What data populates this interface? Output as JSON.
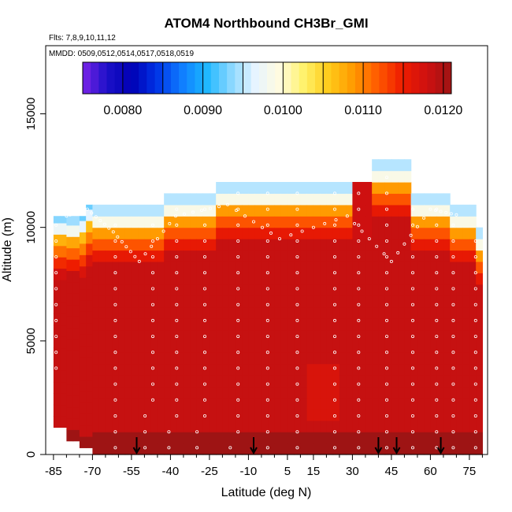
{
  "chart_data": {
    "type": "heatmap",
    "title": "ATOM4 Northbound CH3Br_GMI",
    "subtitle_flights": "Flts: 7,8,9,10,11,12",
    "subtitle_dates": "MMDD: 0509,0512,0514,0517,0518,0519",
    "xlabel": "Latitude (deg N)",
    "ylabel": "Altitude (m)",
    "xlim": [
      -88,
      82
    ],
    "ylim": [
      0,
      18000
    ],
    "x_ticks": [
      -85,
      -70,
      -55,
      -40,
      -25,
      -10,
      5,
      15,
      30,
      45,
      60,
      75
    ],
    "x_tick_labels": [
      "-85",
      "-70",
      "-55",
      "-40",
      "-25",
      "-10",
      "5",
      "15",
      "30",
      "45",
      "60",
      "75"
    ],
    "y_ticks": [
      0,
      5000,
      10000,
      15000
    ],
    "y_tick_labels": [
      "0",
      "5000",
      "10000",
      "15000"
    ],
    "colorbar": {
      "range": [
        0.0075,
        0.0121
      ],
      "ticks": [
        0.008,
        0.009,
        0.01,
        0.011,
        0.012
      ],
      "tick_labels": [
        "0.0080",
        "0.0090",
        "0.0100",
        "0.0110",
        "0.0120"
      ],
      "colors": [
        "#7a24e8",
        "#1c10c8",
        "#0000b4",
        "#0032e6",
        "#0f7bff",
        "#1ab5ff",
        "#86d6ff",
        "#e6f4ff",
        "#fffbe0",
        "#fff26a",
        "#ffcb1a",
        "#ff9a00",
        "#ff5a00",
        "#ee1c00",
        "#cf1010",
        "#9e1414"
      ]
    },
    "surface_profile": [
      {
        "lat": -85,
        "top": 10500
      },
      {
        "lat": -80,
        "top": 10500
      },
      {
        "lat": -75,
        "top": 11000
      },
      {
        "lat": -60,
        "top": 11000
      },
      {
        "lat": -45,
        "top": 11500
      },
      {
        "lat": -25,
        "top": 12000
      },
      {
        "lat": 20,
        "top": 12000
      },
      {
        "lat": 35,
        "top": 13000
      },
      {
        "lat": 50,
        "top": 11500
      },
      {
        "lat": 65,
        "top": 11000
      },
      {
        "lat": 75,
        "top": 10000
      },
      {
        "lat": 80,
        "top": 9500
      }
    ],
    "flight_paths": [
      {
        "lat": -80,
        "alt": 10500
      },
      {
        "lat": -72,
        "alt": 10800
      },
      {
        "lat": -62,
        "alt": 9800
      },
      {
        "lat": -52,
        "alt": 8500
      },
      {
        "lat": -38,
        "alt": 10500
      },
      {
        "lat": -18,
        "alt": 11000
      },
      {
        "lat": 2,
        "alt": 9500
      },
      {
        "lat": 28,
        "alt": 10500
      },
      {
        "lat": 45,
        "alt": 8500
      },
      {
        "lat": 60,
        "alt": 10800
      },
      {
        "lat": 72,
        "alt": 10500
      }
    ],
    "arrows_lat": [
      -53,
      -8,
      40,
      47,
      64
    ]
  }
}
